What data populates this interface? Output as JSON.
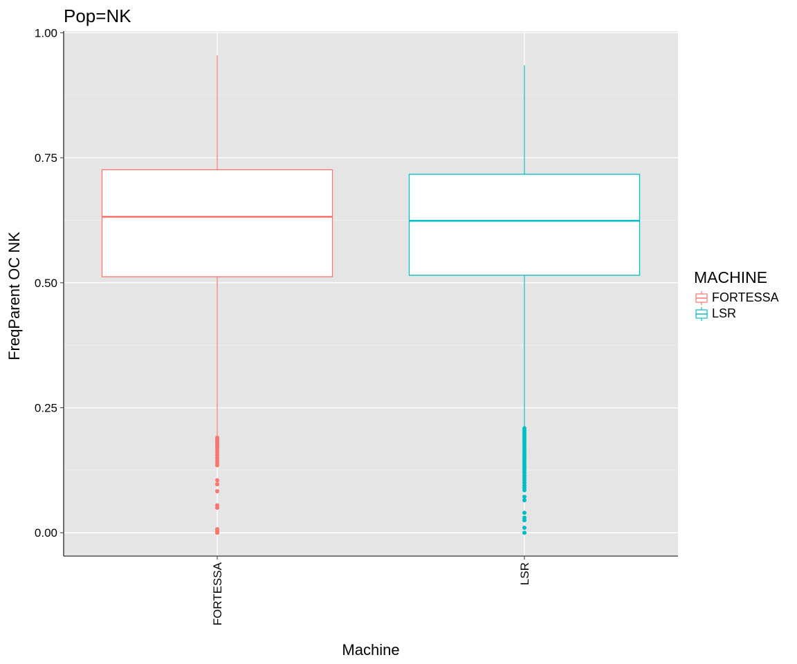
{
  "chart_data": {
    "type": "boxplot",
    "title": "Pop=NK",
    "xlabel": "Machine",
    "ylabel": "FreqParent OC  NK",
    "ylim": [
      -0.0467,
      1.0033
    ],
    "yticks": [
      "0.00",
      "0.25",
      "0.50",
      "0.75",
      "1.00"
    ],
    "ytick_values": [
      0,
      0.25,
      0.5,
      0.75,
      1.0
    ],
    "categories": [
      "FORTESSA",
      "LSR"
    ],
    "grid": true,
    "legend": {
      "title": "MACHINE",
      "position": "right",
      "entries": [
        "FORTESSA",
        "LSR"
      ]
    },
    "series": [
      {
        "name": "FORTESSA",
        "color": "#F8766D",
        "whisker_low": 0.19,
        "q1": 0.512,
        "median": 0.632,
        "q3": 0.726,
        "whisker_high": 0.955,
        "outliers": [
          0.19,
          0.186,
          0.182,
          0.178,
          0.174,
          0.17,
          0.165,
          0.16,
          0.155,
          0.15,
          0.145,
          0.14,
          0.135,
          0.105,
          0.097,
          0.083,
          0.055,
          0.05,
          0.007,
          0.003,
          0.0
        ]
      },
      {
        "name": "LSR",
        "color": "#00BFC4",
        "whisker_low": 0.21,
        "q1": 0.515,
        "median": 0.624,
        "q3": 0.717,
        "whisker_high": 0.935,
        "outliers": [
          0.209,
          0.205,
          0.201,
          0.197,
          0.193,
          0.189,
          0.185,
          0.181,
          0.177,
          0.173,
          0.169,
          0.165,
          0.161,
          0.157,
          0.153,
          0.149,
          0.145,
          0.141,
          0.137,
          0.133,
          0.129,
          0.125,
          0.12,
          0.115,
          0.11,
          0.105,
          0.1,
          0.095,
          0.09,
          0.085,
          0.072,
          0.065,
          0.04,
          0.03,
          0.025,
          0.01,
          0.0
        ]
      }
    ]
  }
}
